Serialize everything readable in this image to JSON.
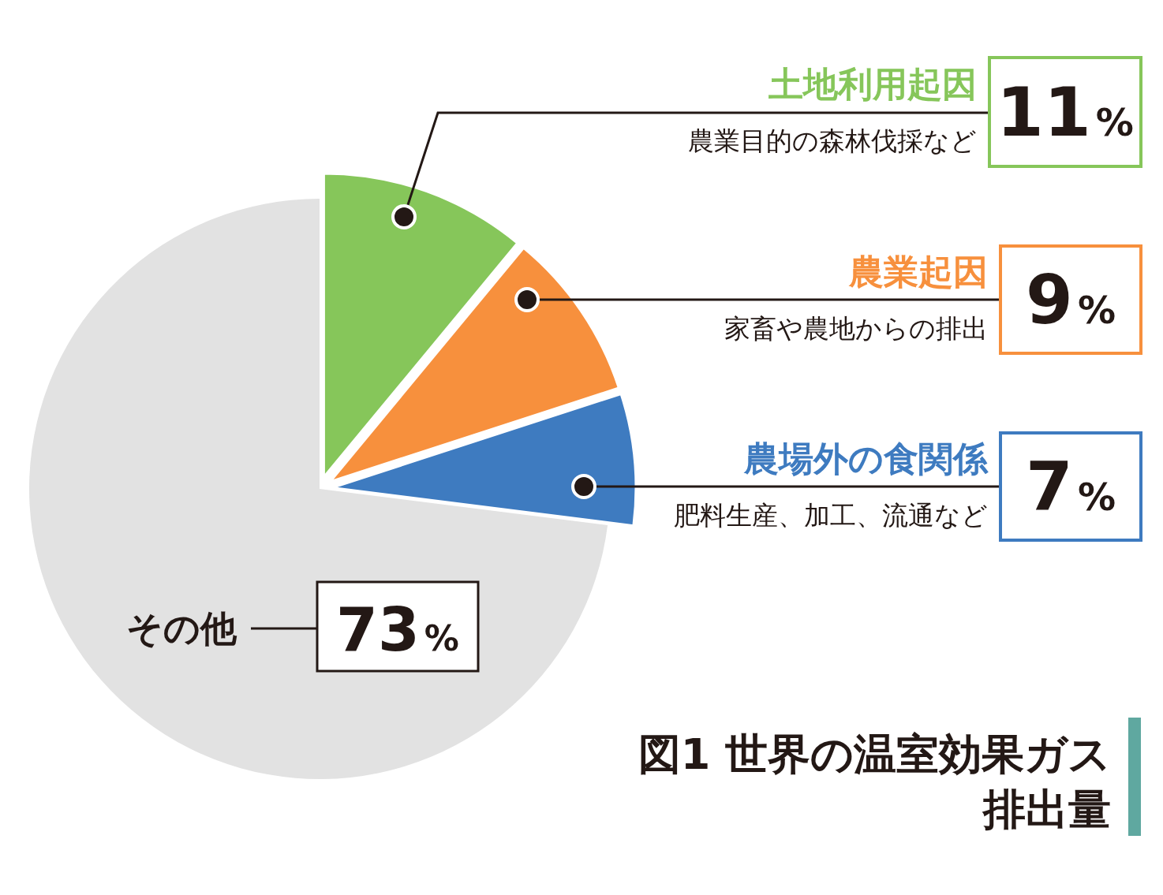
{
  "chart_data": {
    "type": "pie",
    "title": "図1 世界の温室効果ガス排出量",
    "categories": [
      "土地利用起因",
      "農業起因",
      "農場外の食関係",
      "その他"
    ],
    "values": [
      11,
      9,
      7,
      73
    ],
    "colors": [
      "#86c65a",
      "#f7903d",
      "#3e7bc0",
      "#e2e2e2"
    ],
    "value_labels": [
      "11%",
      "9%",
      "7%",
      "73%"
    ],
    "annotations": [
      "農業目的の森林伐採など",
      "家畜や農地からの排出",
      "肥料生産、加工、流通など"
    ]
  }
}
